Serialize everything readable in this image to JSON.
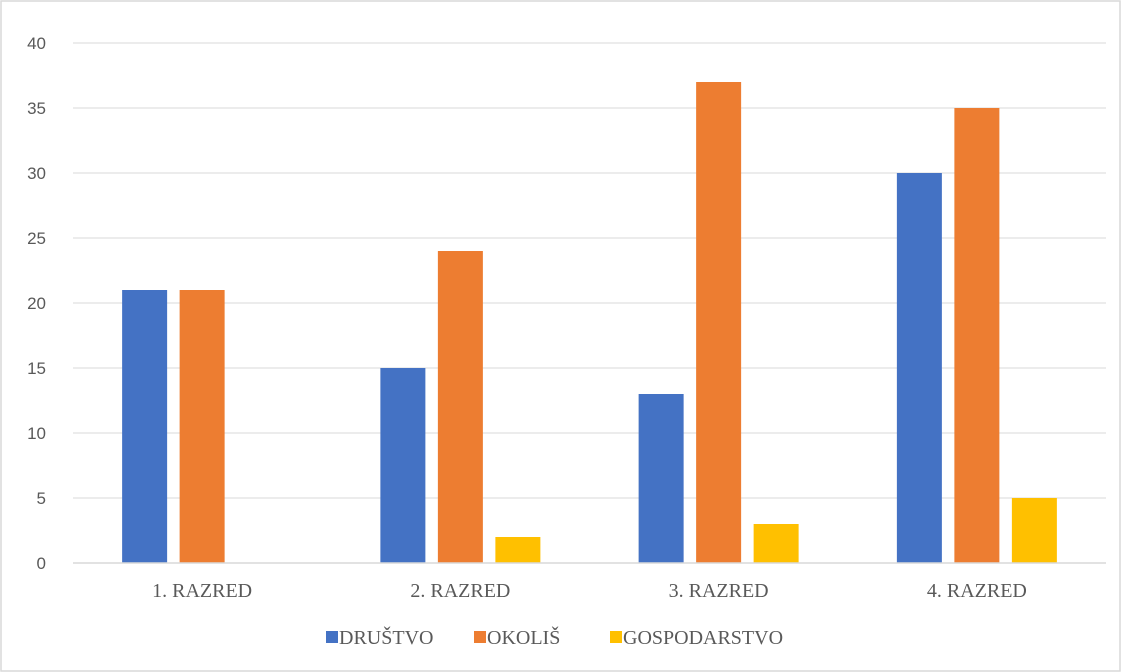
{
  "chart_data": {
    "type": "bar",
    "categories": [
      "1. RAZRED",
      "2. RAZRED",
      "3. RAZRED",
      "4. RAZRED"
    ],
    "series": [
      {
        "name": "DRUŠTVO",
        "color": "#4472C4",
        "values": [
          21,
          15,
          13,
          30
        ]
      },
      {
        "name": "OKOLIŠ",
        "color": "#ED7D31",
        "values": [
          21,
          24,
          37,
          35
        ]
      },
      {
        "name": "GOSPODARSTVO",
        "color": "#FFC000",
        "values": [
          0,
          2,
          3,
          5
        ]
      }
    ],
    "ylim": [
      0,
      40
    ],
    "yticks": [
      "0",
      "5",
      "10",
      "15",
      "20",
      "25",
      "30",
      "35",
      "40"
    ],
    "grid": true,
    "legend_position": "bottom"
  }
}
